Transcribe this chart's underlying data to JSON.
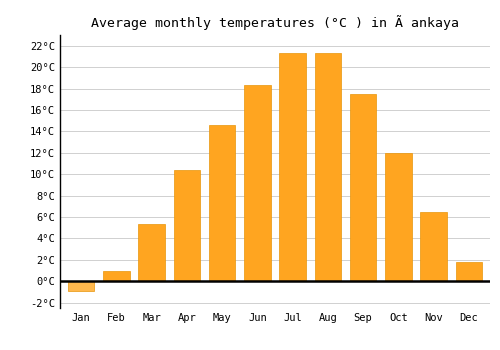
{
  "title": "Average monthly temperatures (°C ) in Ã ankaya",
  "months": [
    "Jan",
    "Feb",
    "Mar",
    "Apr",
    "May",
    "Jun",
    "Jul",
    "Aug",
    "Sep",
    "Oct",
    "Nov",
    "Dec"
  ],
  "values": [
    -0.9,
    1.0,
    5.3,
    10.4,
    14.6,
    18.3,
    21.3,
    21.3,
    17.5,
    12.0,
    6.5,
    1.8
  ],
  "bar_color": "#FFA520",
  "neg_bar_color": "#FFB84D",
  "bar_edge_color": "#E8950A",
  "ylim": [
    -2.5,
    23
  ],
  "yticks": [
    -2,
    0,
    2,
    4,
    6,
    8,
    10,
    12,
    14,
    16,
    18,
    20,
    22
  ],
  "ytick_labels": [
    "-2°C",
    "0°C",
    "2°C",
    "4°C",
    "6°C",
    "8°C",
    "10°C",
    "12°C",
    "14°C",
    "16°C",
    "18°C",
    "20°C",
    "22°C"
  ],
  "background_color": "#ffffff",
  "grid_color": "#d0d0d0",
  "zero_line_color": "#000000",
  "font_family": "monospace",
  "title_fontsize": 9.5,
  "tick_fontsize": 7.5,
  "bar_width": 0.75
}
